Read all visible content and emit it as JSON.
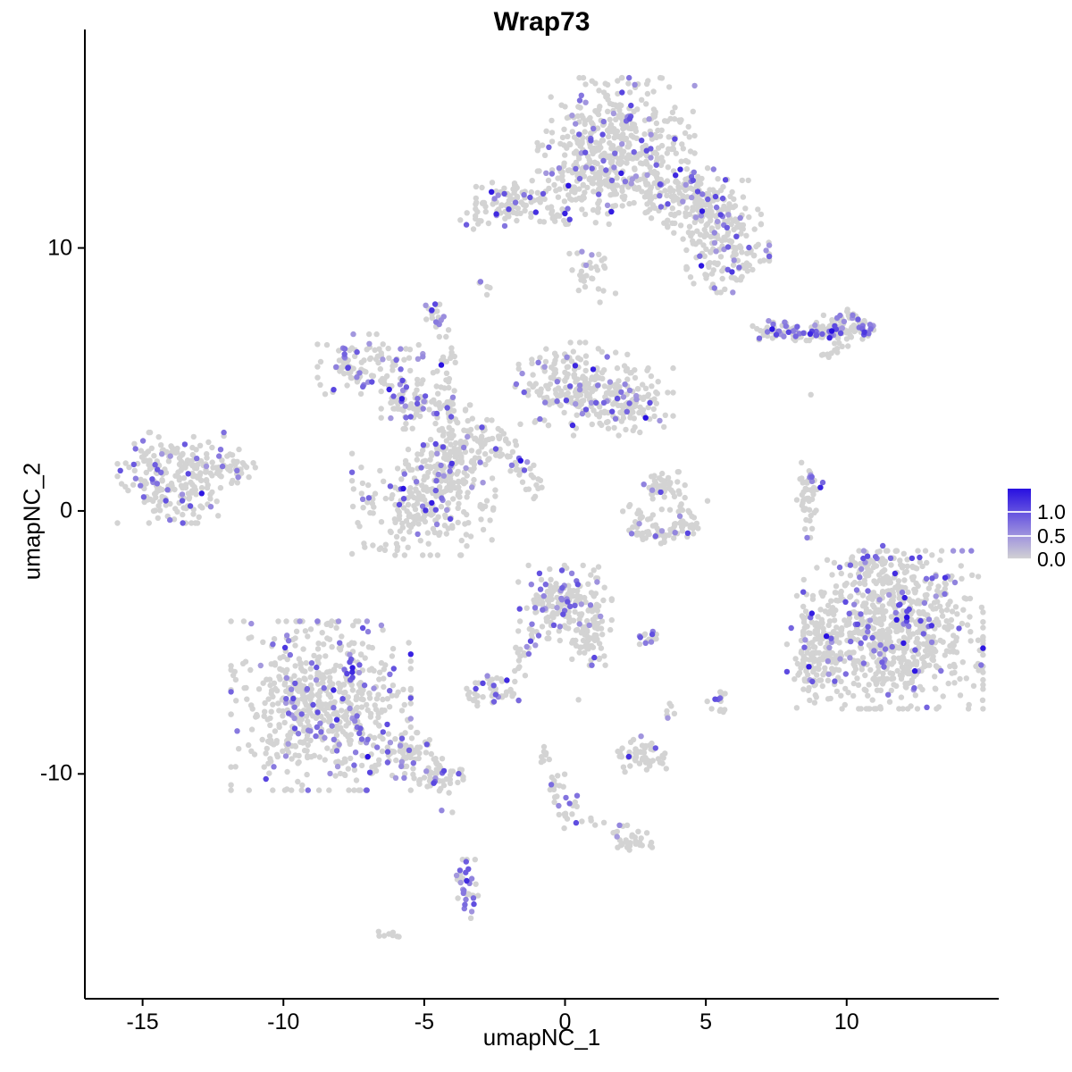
{
  "title": "Wrap73",
  "axes": {
    "x": {
      "label": "umapNC_1",
      "ticks": [
        "-15",
        "-10",
        "-5",
        "0",
        "5",
        "10"
      ],
      "tick_values": [
        -15,
        -10,
        -5,
        0,
        5,
        10
      ],
      "range": [
        -17.05,
        15.4
      ]
    },
    "y": {
      "label": "umapNC_2",
      "ticks": [
        "10",
        "0",
        "-10"
      ],
      "tick_values": [
        10,
        0,
        -10
      ],
      "range": [
        -18.55,
        17.9
      ]
    }
  },
  "legend": {
    "labels": [
      "1.0",
      "0.5",
      "0.0"
    ],
    "tick_values": [
      1.0,
      0.5,
      0.0
    ],
    "scale_max": 1.5,
    "color_low": "#d3d3d3",
    "color_mid": "#a094de",
    "color_high": "#2810e1"
  },
  "colors": {
    "background": "#ffffff",
    "axis": "#000000",
    "point_grey": "#d3d3d3"
  },
  "chart_data": {
    "type": "scatter",
    "title": "Wrap73",
    "xlabel": "umapNC_1",
    "ylabel": "umapNC_2",
    "point_radius": 3.2,
    "seed": 42,
    "clusters": [
      {
        "name": "top-main",
        "x": 1.81,
        "y": 14.18,
        "sx": 1.33,
        "sy": 1.09,
        "n": 380,
        "frac": 0.1
      },
      {
        "name": "top-lower",
        "x": 1.02,
        "y": 12.48,
        "sx": 0.95,
        "sy": 0.75,
        "n": 150,
        "frac": 0.12
      },
      {
        "name": "top-arm-1",
        "x": 4.03,
        "y": 12.14,
        "sx": 0.95,
        "sy": 0.61,
        "n": 140,
        "frac": 0.12
      },
      {
        "name": "top-arm-2",
        "x": 5.3,
        "y": 11.29,
        "sx": 0.79,
        "sy": 0.61,
        "n": 120,
        "frac": 0.15
      },
      {
        "name": "top-arm-3",
        "x": 5.78,
        "y": 9.59,
        "sx": 0.7,
        "sy": 0.61,
        "n": 110,
        "frac": 0.15
      },
      {
        "name": "nw-blob",
        "x": -1.84,
        "y": 11.7,
        "sx": 0.63,
        "sy": 0.41,
        "n": 80,
        "frac": 0.15
      },
      {
        "name": "nw-tail",
        "x": -3.17,
        "y": 11.19,
        "sx": 0.32,
        "sy": 0.24,
        "n": 14,
        "frac": 0.1
      },
      {
        "name": "nw-chain",
        "x": -0.41,
        "y": 11.29,
        "sx": 0.38,
        "sy": 0.27,
        "n": 18,
        "frac": 0.1
      },
      {
        "name": "below-top",
        "x": 0.86,
        "y": 9.08,
        "sx": 0.48,
        "sy": 0.61,
        "n": 30,
        "frac": 0.1
      },
      {
        "name": "tiny-pair",
        "x": -2.86,
        "y": 8.64,
        "sx": 0.16,
        "sy": 0.2,
        "n": 5,
        "frac": 0.3
      },
      {
        "name": "small-mid-nw",
        "x": -4.6,
        "y": 7.45,
        "sx": 0.22,
        "sy": 0.27,
        "n": 22,
        "frac": 0.25
      },
      {
        "name": "east-arm",
        "x": 7.46,
        "y": 6.87,
        "sx": 0.38,
        "sy": 0.17,
        "n": 35,
        "frac": 0.55
      },
      {
        "name": "east-mid",
        "x": 8.38,
        "y": 6.84,
        "sx": 0.29,
        "sy": 0.17,
        "n": 25,
        "frac": 0.2
      },
      {
        "name": "east-blob-1",
        "x": 9.17,
        "y": 6.84,
        "sx": 0.25,
        "sy": 0.2,
        "n": 30,
        "frac": 0.35
      },
      {
        "name": "east-blob-2",
        "x": 10.06,
        "y": 7.01,
        "sx": 0.44,
        "sy": 0.31,
        "n": 80,
        "frac": 0.3
      },
      {
        "name": "east-streak",
        "x": 9.52,
        "y": 6.09,
        "sx": 0.25,
        "sy": 0.14,
        "n": 12,
        "frac": 0.0
      },
      {
        "name": "mid-lobe-nw",
        "x": -6.92,
        "y": 5.44,
        "sx": 0.89,
        "sy": 0.61,
        "n": 120,
        "frac": 0.17
      },
      {
        "name": "mid-bridge",
        "x": -5.33,
        "y": 3.98,
        "sx": 0.57,
        "sy": 0.41,
        "n": 70,
        "frac": 0.2
      },
      {
        "name": "mid-strand",
        "x": -4.22,
        "y": 5.34,
        "sx": 0.22,
        "sy": 0.61,
        "n": 30,
        "frac": 0.05
      },
      {
        "name": "mid-center",
        "x": -3.97,
        "y": 2.45,
        "sx": 0.76,
        "sy": 0.75,
        "n": 150,
        "frac": 0.1
      },
      {
        "name": "mid-lower",
        "x": -5.02,
        "y": 0.31,
        "sx": 1.21,
        "sy": 0.95,
        "n": 260,
        "frac": 0.12
      },
      {
        "name": "comet-1",
        "x": -2.7,
        "y": 2.96,
        "sx": 0.25,
        "sy": 0.24,
        "n": 15,
        "frac": 0.0
      },
      {
        "name": "comet-2",
        "x": -2.16,
        "y": 2.28,
        "sx": 0.25,
        "sy": 0.24,
        "n": 18,
        "frac": 0.2
      },
      {
        "name": "comet-3",
        "x": -1.52,
        "y": 1.5,
        "sx": 0.25,
        "sy": 0.24,
        "n": 18,
        "frac": 0.2
      },
      {
        "name": "comet-4",
        "x": -1.05,
        "y": 0.92,
        "sx": 0.25,
        "sy": 0.24,
        "n": 10,
        "frac": 0.0
      },
      {
        "name": "mid-lobe-e",
        "x": 0.22,
        "y": 4.83,
        "sx": 0.95,
        "sy": 0.75,
        "n": 180,
        "frac": 0.12
      },
      {
        "name": "mid-lobe-e2",
        "x": 1.97,
        "y": 4.15,
        "sx": 0.89,
        "sy": 0.61,
        "n": 150,
        "frac": 0.1
      },
      {
        "name": "west-main",
        "x": -13.75,
        "y": 1.26,
        "sx": 1.02,
        "sy": 0.82,
        "n": 230,
        "frac": 0.12
      },
      {
        "name": "west-apex",
        "x": -12.0,
        "y": 1.7,
        "sx": 0.57,
        "sy": 0.34,
        "n": 40,
        "frac": 0.1
      },
      {
        "name": "e-strand",
        "x": 8.63,
        "y": 0.41,
        "sx": 0.19,
        "sy": 0.68,
        "n": 45,
        "frac": 0.05
      },
      {
        "name": "e-strand-cap",
        "x": 8.86,
        "y": 1.12,
        "sx": 0.16,
        "sy": 0.14,
        "n": 6,
        "frac": 0.8
      },
      {
        "name": "smile-top",
        "x": 3.46,
        "y": 0.92,
        "sx": 0.38,
        "sy": 0.27,
        "n": 45,
        "frac": 0.04
      },
      {
        "name": "smile-mid",
        "x": 3.4,
        "y": 0.07,
        "sx": 0.79,
        "sy": 0.27,
        "n": 15,
        "frac": 0.0
      },
      {
        "name": "smile-arc-1",
        "x": 2.7,
        "y": -0.61,
        "sx": 0.25,
        "sy": 0.2,
        "n": 20,
        "frac": 0.3
      },
      {
        "name": "smile-arc-2",
        "x": 3.56,
        "y": -0.88,
        "sx": 0.38,
        "sy": 0.17,
        "n": 30,
        "frac": 0.05
      },
      {
        "name": "smile-arc-3",
        "x": 4.41,
        "y": -0.54,
        "sx": 0.25,
        "sy": 0.27,
        "n": 25,
        "frac": 0.15
      },
      {
        "name": "se-core",
        "x": 11.65,
        "y": -4.52,
        "sx": 1.52,
        "sy": 1.43,
        "n": 750,
        "frac": 0.12
      },
      {
        "name": "se-wing",
        "x": 8.95,
        "y": -5.37,
        "sx": 0.51,
        "sy": 1.02,
        "n": 130,
        "frac": 0.1
      },
      {
        "name": "se-top",
        "x": 11.17,
        "y": -2.04,
        "sx": 0.95,
        "sy": 0.34,
        "n": 60,
        "frac": 0.15
      },
      {
        "name": "center-main",
        "x": 0.0,
        "y": -3.5,
        "sx": 0.79,
        "sy": 0.68,
        "n": 200,
        "frac": 0.18
      },
      {
        "name": "center-arm",
        "x": 0.92,
        "y": -4.86,
        "sx": 0.32,
        "sy": 0.48,
        "n": 45,
        "frac": 0.05
      },
      {
        "name": "center-streak",
        "x": -1.21,
        "y": -5.03,
        "sx": 0.13,
        "sy": 0.27,
        "n": 10,
        "frac": 0.6
      },
      {
        "name": "center-strand",
        "x": -1.59,
        "y": -5.78,
        "sx": 0.16,
        "sy": 0.34,
        "n": 12,
        "frac": 0.0
      },
      {
        "name": "center-sw",
        "x": -2.57,
        "y": -6.84,
        "sx": 0.44,
        "sy": 0.27,
        "n": 45,
        "frac": 0.3
      },
      {
        "name": "center-e-dot",
        "x": 3.11,
        "y": -4.9,
        "sx": 0.22,
        "sy": 0.17,
        "n": 16,
        "frac": 0.25
      },
      {
        "name": "mini-pair",
        "x": 3.71,
        "y": -7.59,
        "sx": 0.13,
        "sy": 0.17,
        "n": 6,
        "frac": 0.3
      },
      {
        "name": "mini-e",
        "x": 5.49,
        "y": -7.21,
        "sx": 0.16,
        "sy": 0.27,
        "n": 14,
        "frac": 0.35
      },
      {
        "name": "sw-main",
        "x": -8.67,
        "y": -7.41,
        "sx": 1.52,
        "sy": 1.53,
        "n": 620,
        "frac": 0.15
      },
      {
        "name": "sw-tail-1",
        "x": -5.81,
        "y": -9.29,
        "sx": 0.57,
        "sy": 0.41,
        "n": 70,
        "frac": 0.12
      },
      {
        "name": "sw-tail-2",
        "x": -4.54,
        "y": -10.07,
        "sx": 0.44,
        "sy": 0.31,
        "n": 50,
        "frac": 0.12
      },
      {
        "name": "s-blob",
        "x": 2.67,
        "y": -9.35,
        "sx": 0.44,
        "sy": 0.31,
        "n": 55,
        "frac": 0.06
      },
      {
        "name": "s-trail-pair",
        "x": -0.73,
        "y": -9.39,
        "sx": 0.13,
        "sy": 0.2,
        "n": 8,
        "frac": 0.0
      },
      {
        "name": "s-trail-1",
        "x": -0.35,
        "y": -10.48,
        "sx": 0.16,
        "sy": 0.41,
        "n": 14,
        "frac": 0.15
      },
      {
        "name": "s-trail-2",
        "x": 0.03,
        "y": -11.5,
        "sx": 0.19,
        "sy": 0.41,
        "n": 16,
        "frac": 0.25
      },
      {
        "name": "s-chain",
        "x": 0.98,
        "y": -11.8,
        "sx": 0.25,
        "sy": 0.1,
        "n": 5,
        "frac": 0.0
      },
      {
        "name": "s-blob-2",
        "x": 2.38,
        "y": -12.52,
        "sx": 0.38,
        "sy": 0.27,
        "n": 35,
        "frac": 0.06
      },
      {
        "name": "bottom-strand",
        "x": -3.49,
        "y": -14.39,
        "sx": 0.19,
        "sy": 0.54,
        "n": 35,
        "frac": 0.4
      },
      {
        "name": "bottom-dash",
        "x": -6.22,
        "y": -16.09,
        "sx": 0.19,
        "sy": 0.1,
        "n": 8,
        "frac": 0.0
      }
    ],
    "singles_grey": [
      {
        "x": -2.79,
        "y": 2.69
      },
      {
        "x": 8.73,
        "y": 4.42
      },
      {
        "x": 0.48,
        "y": -7.18
      },
      {
        "x": 5.05,
        "y": -7.24
      },
      {
        "x": -4.0,
        "y": -11.46
      },
      {
        "x": 9.17,
        "y": 5.95
      }
    ],
    "singles_expressing": [
      {
        "x": 2.86,
        "y": 3.54,
        "value": 1.0
      },
      {
        "x": 12.06,
        "y": -3.3,
        "value": 0.95
      },
      {
        "x": -2.44,
        "y": 11.29,
        "value": 0.9
      },
      {
        "x": -7.71,
        "y": 5.44,
        "value": 0.8
      },
      {
        "x": -9.94,
        "y": -5.2,
        "value": 0.85
      },
      {
        "x": 12.32,
        "y": -1.8,
        "value": 0.8
      },
      {
        "x": 10.63,
        "y": 6.8,
        "value": 0.85
      },
      {
        "x": 7.94,
        "y": 6.8,
        "value": 0.8
      },
      {
        "x": -4.38,
        "y": -11.39,
        "value": 0.55
      },
      {
        "x": 2.7,
        "y": -8.57,
        "value": 0.5
      }
    ]
  }
}
